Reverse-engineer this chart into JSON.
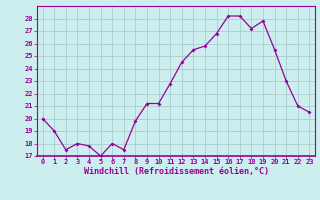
{
  "x": [
    0,
    1,
    2,
    3,
    4,
    5,
    6,
    7,
    8,
    9,
    10,
    11,
    12,
    13,
    14,
    15,
    16,
    17,
    18,
    19,
    20,
    21,
    22,
    23
  ],
  "y": [
    20,
    19,
    17.5,
    18,
    17.8,
    17,
    18,
    17.5,
    19.8,
    21.2,
    21.2,
    22.8,
    24.5,
    25.5,
    25.8,
    26.8,
    28.2,
    28.2,
    27.2,
    27.8,
    25.5,
    23,
    21,
    20.5
  ],
  "line_color": "#990099",
  "marker_color": "#990099",
  "background_color": "#cceeee",
  "grid_color": "#aacccc",
  "ylim": [
    17,
    29
  ],
  "yticks": [
    17,
    18,
    19,
    20,
    21,
    22,
    23,
    24,
    25,
    26,
    27,
    28
  ],
  "xlabel": "Windchill (Refroidissement éolien,°C)",
  "xlabel_color": "#990099",
  "tick_color": "#990099"
}
